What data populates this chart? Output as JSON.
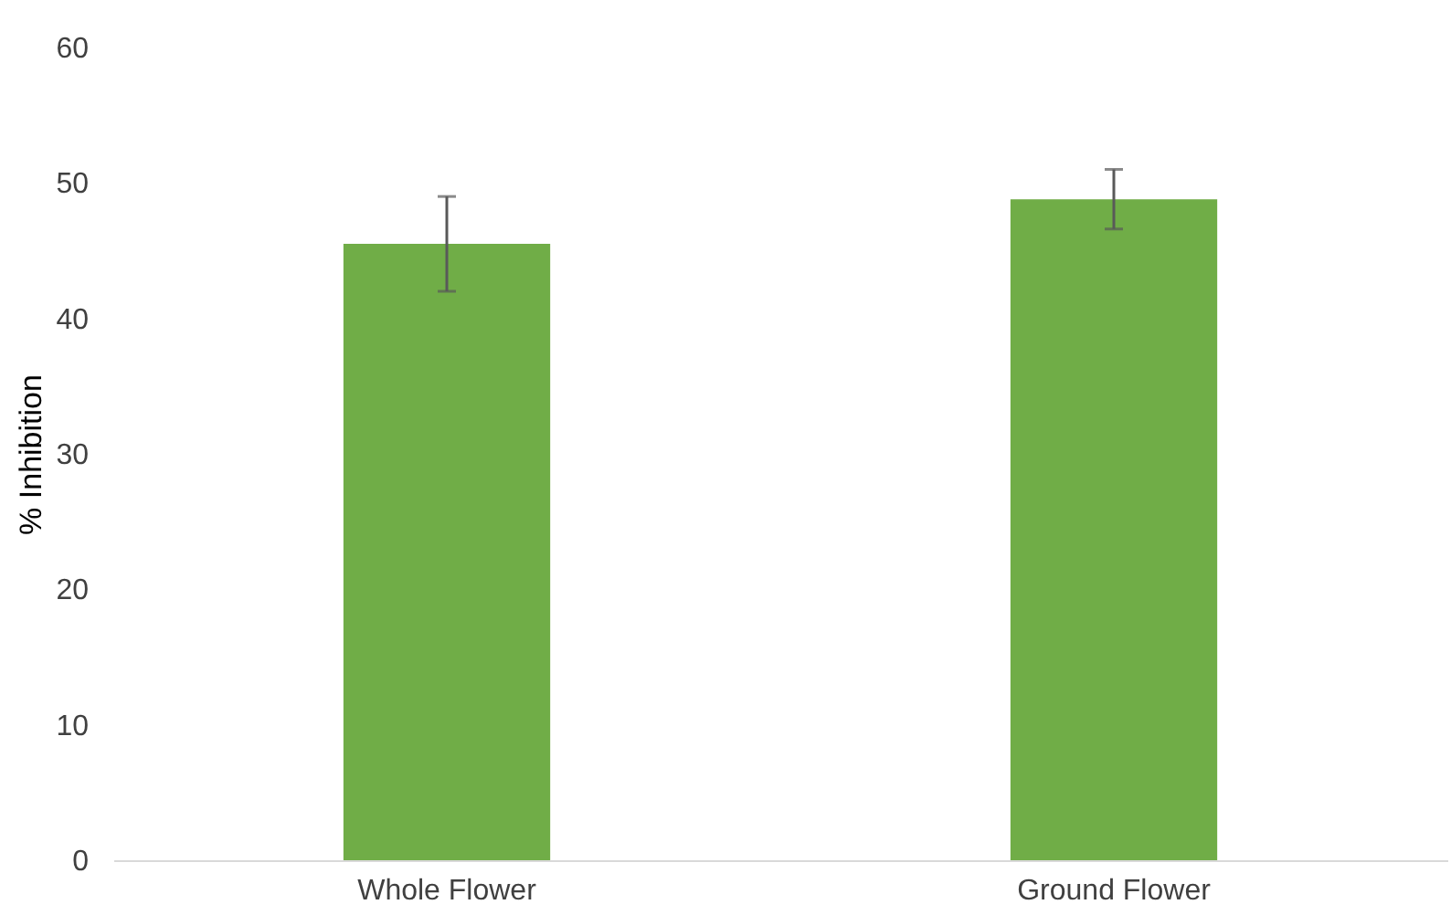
{
  "chart_data": {
    "type": "bar",
    "ylabel": "% Inhibition",
    "categories": [
      "Whole Flower",
      "Ground Flower"
    ],
    "values": [
      45.5,
      48.8
    ],
    "color": "#70ad47",
    "errors": [
      3.5,
      2.2
    ],
    "ylim": [
      0,
      60
    ],
    "yticks": [
      0,
      10,
      20,
      30,
      40,
      50,
      60
    ],
    "grid": false
  }
}
